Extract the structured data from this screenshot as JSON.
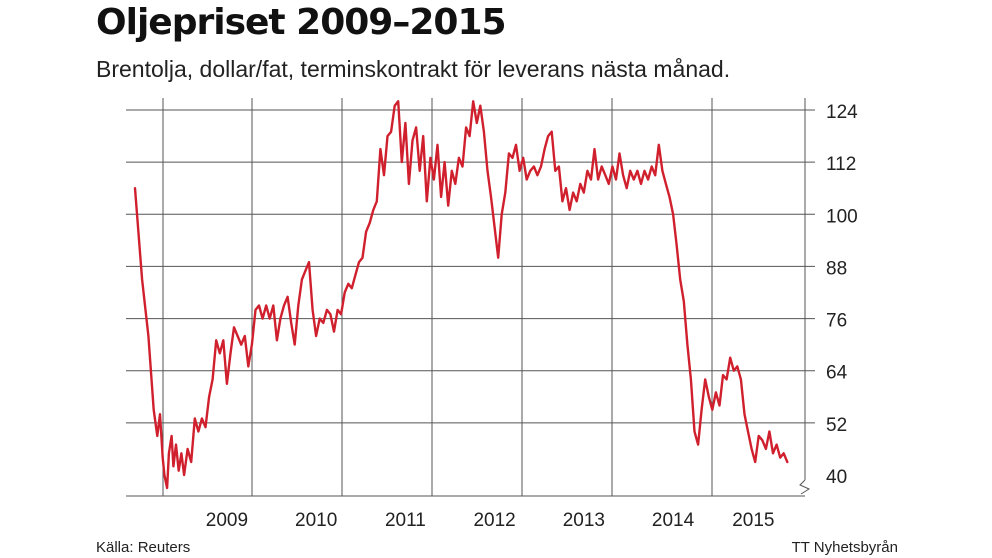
{
  "title": "Oljepriset 2009–2015",
  "subtitle": "Brentolja, dollar/fat, terminskontrakt för leverans nästa månad.",
  "footer": {
    "source": "Källa: Reuters",
    "credit": "TT Nyhetsbyrån"
  },
  "colors": {
    "line": "#d0202e",
    "grid": "#555555",
    "text": "#222222"
  },
  "chart_data": {
    "type": "line",
    "title": "Oljepriset 2009–2015",
    "subtitle": "Brentolja, dollar/fat, terminskontrakt för leverans nästa månad.",
    "xlabel": "",
    "ylabel": "",
    "ylim": [
      40,
      124
    ],
    "yticks": [
      124,
      112,
      100,
      88,
      76,
      64,
      52,
      40
    ],
    "y_axis_side": "right",
    "y_axis_break": true,
    "xlim": [
      2008.47,
      2015.9
    ],
    "xticks": [
      {
        "label": "2009",
        "value": 2009.5
      },
      {
        "label": "2010",
        "value": 2010.5
      },
      {
        "label": "2011",
        "value": 2011.5
      },
      {
        "label": "2012",
        "value": 2012.5
      },
      {
        "label": "2013",
        "value": 2013.5
      },
      {
        "label": "2014",
        "value": 2014.5
      },
      {
        "label": "2015",
        "value": 2015.4
      }
    ],
    "grid": true,
    "series": [
      {
        "points": [
          [
            2008.47,
            106
          ],
          [
            2008.55,
            85
          ],
          [
            2008.62,
            72
          ],
          [
            2008.68,
            55
          ],
          [
            2008.72,
            49
          ],
          [
            2008.75,
            54
          ],
          [
            2008.78,
            44
          ],
          [
            2008.8,
            40
          ],
          [
            2008.83,
            37
          ],
          [
            2008.85,
            45
          ],
          [
            2008.88,
            49
          ],
          [
            2008.9,
            42
          ],
          [
            2008.93,
            47
          ],
          [
            2008.96,
            41
          ],
          [
            2008.99,
            45
          ],
          [
            2009.02,
            40
          ],
          [
            2009.06,
            46
          ],
          [
            2009.1,
            43
          ],
          [
            2009.14,
            53
          ],
          [
            2009.18,
            50
          ],
          [
            2009.22,
            53
          ],
          [
            2009.26,
            51
          ],
          [
            2009.3,
            58
          ],
          [
            2009.34,
            62
          ],
          [
            2009.38,
            71
          ],
          [
            2009.42,
            68
          ],
          [
            2009.46,
            71
          ],
          [
            2009.5,
            61
          ],
          [
            2009.54,
            68
          ],
          [
            2009.58,
            74
          ],
          [
            2009.62,
            72
          ],
          [
            2009.66,
            70
          ],
          [
            2009.7,
            72
          ],
          [
            2009.74,
            65
          ],
          [
            2009.78,
            70
          ],
          [
            2009.82,
            78
          ],
          [
            2009.86,
            79
          ],
          [
            2009.9,
            76
          ],
          [
            2009.94,
            79
          ],
          [
            2009.98,
            76
          ],
          [
            2010.02,
            79
          ],
          [
            2010.06,
            71
          ],
          [
            2010.1,
            76
          ],
          [
            2010.14,
            79
          ],
          [
            2010.18,
            81
          ],
          [
            2010.22,
            75
          ],
          [
            2010.26,
            70
          ],
          [
            2010.3,
            79
          ],
          [
            2010.34,
            85
          ],
          [
            2010.38,
            87
          ],
          [
            2010.42,
            89
          ],
          [
            2010.46,
            78
          ],
          [
            2010.5,
            72
          ],
          [
            2010.54,
            76
          ],
          [
            2010.58,
            75
          ],
          [
            2010.62,
            78
          ],
          [
            2010.66,
            77
          ],
          [
            2010.7,
            73
          ],
          [
            2010.74,
            78
          ],
          [
            2010.78,
            77
          ],
          [
            2010.82,
            82
          ],
          [
            2010.86,
            84
          ],
          [
            2010.9,
            83
          ],
          [
            2010.94,
            86
          ],
          [
            2010.98,
            89
          ],
          [
            2011.02,
            90
          ],
          [
            2011.06,
            96
          ],
          [
            2011.1,
            98
          ],
          [
            2011.14,
            101
          ],
          [
            2011.18,
            103
          ],
          [
            2011.22,
            115
          ],
          [
            2011.26,
            109
          ],
          [
            2011.3,
            118
          ],
          [
            2011.34,
            119
          ],
          [
            2011.38,
            125
          ],
          [
            2011.42,
            126
          ],
          [
            2011.46,
            112
          ],
          [
            2011.5,
            121
          ],
          [
            2011.54,
            107
          ],
          [
            2011.58,
            117
          ],
          [
            2011.62,
            120
          ],
          [
            2011.66,
            110
          ],
          [
            2011.7,
            118
          ],
          [
            2011.74,
            103
          ],
          [
            2011.78,
            113
          ],
          [
            2011.82,
            108
          ],
          [
            2011.86,
            116
          ],
          [
            2011.9,
            104
          ],
          [
            2011.94,
            112
          ],
          [
            2011.98,
            102
          ],
          [
            2012.02,
            110
          ],
          [
            2012.06,
            107
          ],
          [
            2012.1,
            113
          ],
          [
            2012.14,
            111
          ],
          [
            2012.18,
            120
          ],
          [
            2012.22,
            118
          ],
          [
            2012.26,
            126
          ],
          [
            2012.3,
            121
          ],
          [
            2012.34,
            125
          ],
          [
            2012.38,
            119
          ],
          [
            2012.42,
            110
          ],
          [
            2012.46,
            104
          ],
          [
            2012.5,
            97
          ],
          [
            2012.54,
            90
          ],
          [
            2012.58,
            100
          ],
          [
            2012.62,
            105
          ],
          [
            2012.66,
            114
          ],
          [
            2012.7,
            113
          ],
          [
            2012.74,
            116
          ],
          [
            2012.78,
            110
          ],
          [
            2012.82,
            113
          ],
          [
            2012.86,
            108
          ],
          [
            2012.9,
            110
          ],
          [
            2012.94,
            111
          ],
          [
            2012.98,
            109
          ],
          [
            2013.02,
            111
          ],
          [
            2013.06,
            115
          ],
          [
            2013.1,
            118
          ],
          [
            2013.14,
            119
          ],
          [
            2013.18,
            110
          ],
          [
            2013.22,
            111
          ],
          [
            2013.26,
            103
          ],
          [
            2013.3,
            106
          ],
          [
            2013.34,
            101
          ],
          [
            2013.38,
            105
          ],
          [
            2013.42,
            103
          ],
          [
            2013.46,
            107
          ],
          [
            2013.5,
            105
          ],
          [
            2013.54,
            110
          ],
          [
            2013.58,
            108
          ],
          [
            2013.62,
            115
          ],
          [
            2013.66,
            108
          ],
          [
            2013.7,
            111
          ],
          [
            2013.74,
            109
          ],
          [
            2013.78,
            107
          ],
          [
            2013.82,
            111
          ],
          [
            2013.86,
            108
          ],
          [
            2013.9,
            114
          ],
          [
            2013.94,
            109
          ],
          [
            2013.98,
            106
          ],
          [
            2014.02,
            110
          ],
          [
            2014.06,
            108
          ],
          [
            2014.1,
            110
          ],
          [
            2014.14,
            107
          ],
          [
            2014.18,
            110
          ],
          [
            2014.22,
            108
          ],
          [
            2014.26,
            111
          ],
          [
            2014.3,
            109
          ],
          [
            2014.34,
            116
          ],
          [
            2014.38,
            110
          ],
          [
            2014.42,
            107
          ],
          [
            2014.46,
            104
          ],
          [
            2014.5,
            100
          ],
          [
            2014.54,
            93
          ],
          [
            2014.58,
            85
          ],
          [
            2014.62,
            80
          ],
          [
            2014.66,
            70
          ],
          [
            2014.7,
            62
          ],
          [
            2014.74,
            50
          ],
          [
            2014.78,
            47
          ],
          [
            2014.82,
            55
          ],
          [
            2014.86,
            62
          ],
          [
            2014.9,
            58
          ],
          [
            2014.94,
            55
          ],
          [
            2014.98,
            59
          ],
          [
            2015.02,
            56
          ],
          [
            2015.06,
            63
          ],
          [
            2015.1,
            62
          ],
          [
            2015.14,
            67
          ],
          [
            2015.18,
            64
          ],
          [
            2015.22,
            65
          ],
          [
            2015.26,
            62
          ],
          [
            2015.3,
            54
          ],
          [
            2015.34,
            50
          ],
          [
            2015.38,
            46
          ],
          [
            2015.42,
            43
          ],
          [
            2015.46,
            49
          ],
          [
            2015.5,
            48
          ],
          [
            2015.54,
            46
          ],
          [
            2015.58,
            50
          ],
          [
            2015.62,
            45
          ],
          [
            2015.66,
            47
          ],
          [
            2015.7,
            44
          ],
          [
            2015.74,
            45
          ],
          [
            2015.78,
            43
          ]
        ]
      }
    ]
  }
}
